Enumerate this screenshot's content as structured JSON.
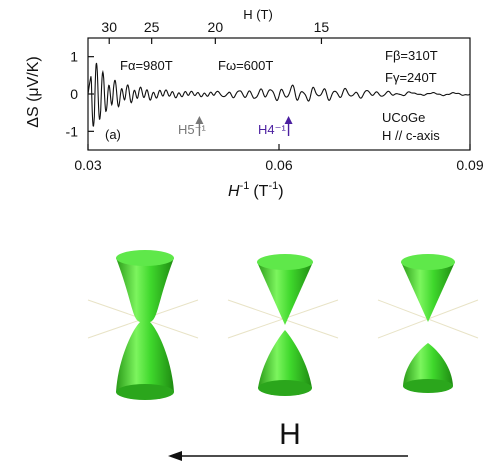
{
  "chart_data": {
    "type": "line",
    "xlabel_main": "H",
    "xlabel_sup": "-1",
    "xlabel_unit_open": "(T",
    "xlabel_unit_sup": "-1",
    "xlabel_unit_close": ")",
    "xlim": [
      0.03,
      0.09
    ],
    "x_ticks": [
      0.03,
      0.06,
      0.09
    ],
    "x_tick_labels": [
      "0.03",
      "0.06",
      "0.09"
    ],
    "ylabel": "ΔS (μV/K)",
    "ylim": [
      -1.5,
      1.5
    ],
    "y_ticks": [
      1,
      0,
      -1
    ],
    "y_tick_labels": [
      "1",
      "0",
      "-1"
    ],
    "top_axis_label": "H (T)",
    "top_ticks": [
      30,
      25,
      20,
      15
    ],
    "top_tick_labels": [
      "30",
      "25",
      "20",
      "15"
    ],
    "panel_label": "(a)",
    "sample": "UCoGe",
    "field_dir": "H // c-axis",
    "annotations": {
      "f_alpha": "Fα=980T",
      "f_omega": "Fω=600T",
      "f_beta": "Fβ=310T",
      "f_gamma": "Fγ=240T",
      "h5": "H5⁻¹",
      "h4": "H4⁻¹"
    },
    "h5_marker_x": 0.0475,
    "h4_marker_x": 0.0615,
    "series": [
      {
        "x": [
          0.03,
          0.0305,
          0.031,
          0.0315,
          0.032,
          0.0325,
          0.033,
          0.034,
          0.035,
          0.036,
          0.037,
          0.038,
          0.04,
          0.042,
          0.044,
          0.046,
          0.048,
          0.05,
          0.052,
          0.054,
          0.056,
          0.058,
          0.06,
          0.062,
          0.064,
          0.066,
          0.068,
          0.07,
          0.072,
          0.074,
          0.076,
          0.078,
          0.08,
          0.082,
          0.084,
          0.086,
          0.088,
          0.09
        ],
        "y": [
          0.0,
          1.25,
          -1.35,
          1.05,
          -0.95,
          0.75,
          -0.6,
          0.45,
          -0.35,
          0.3,
          -0.25,
          0.2,
          -0.15,
          0.12,
          -0.1,
          0.08,
          -0.08,
          0.05,
          -0.1,
          0.08,
          -0.12,
          0.15,
          -0.12,
          0.2,
          -0.18,
          0.15,
          -0.1,
          0.08,
          -0.05,
          0.04,
          0.02,
          -0.02,
          0.03,
          0.01,
          0.0,
          -0.01,
          0.0,
          0.0
        ]
      }
    ]
  },
  "diagram": {
    "arrow_label": "H",
    "surface_color": "#2fd020"
  }
}
